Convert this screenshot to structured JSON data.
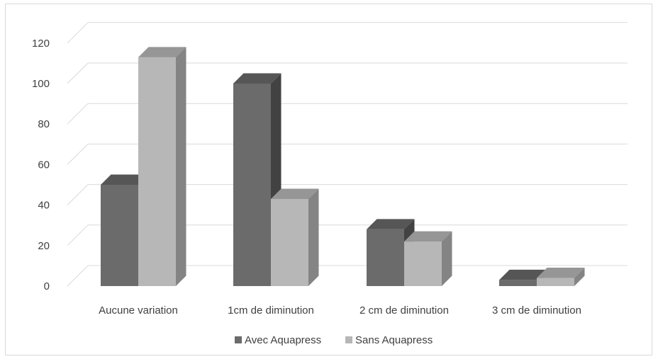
{
  "chart_data": {
    "type": "bar",
    "categories": [
      "Aucune variation",
      "1cm de diminution",
      "2 cm de diminution",
      "3 cm de diminution"
    ],
    "series": [
      {
        "name": "Avec Aquapress",
        "values": [
          50,
          100,
          28,
          3
        ],
        "color": "#6b6b6b"
      },
      {
        "name": "Sans Aquapress",
        "values": [
          113,
          43,
          22,
          4
        ],
        "color": "#b7b7b7"
      }
    ],
    "y_ticks": [
      "0",
      "20",
      "40",
      "60",
      "80",
      "100",
      "120"
    ],
    "ylim": [
      0,
      130
    ],
    "grid": true,
    "legend_position": "bottom",
    "style": "3d-clustered-column"
  }
}
